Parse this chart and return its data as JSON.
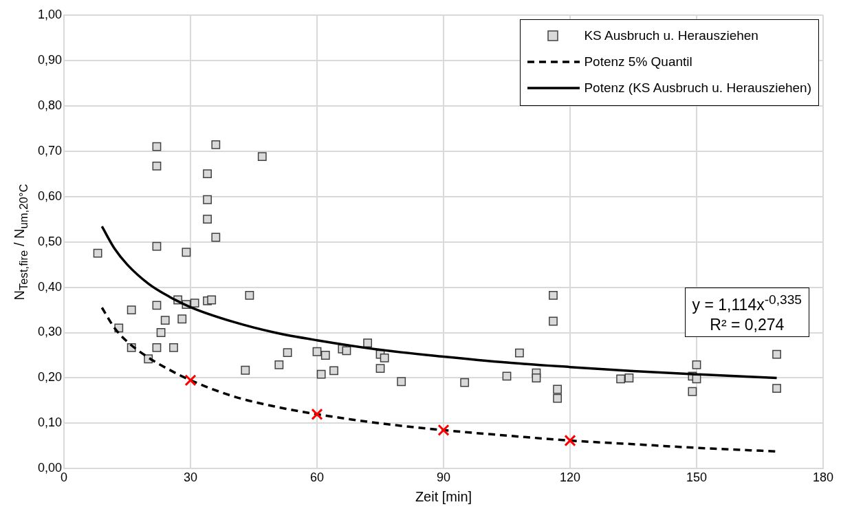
{
  "chart_data": {
    "type": "scatter",
    "xlabel": "Zeit [min]",
    "ylabel": "N$_{Test,fire}$ / N$_{um,20°C}$",
    "xlim": [
      0,
      180
    ],
    "xticks": [
      0,
      30,
      60,
      90,
      120,
      150,
      180
    ],
    "ylim": [
      0,
      1
    ],
    "yticks": [
      {
        "value": 0,
        "label": "0,00"
      },
      {
        "value": 0.1,
        "label": "0,10"
      },
      {
        "value": 0.2,
        "label": "0,20"
      },
      {
        "value": 0.3,
        "label": "0,30"
      },
      {
        "value": 0.4,
        "label": "0,40"
      },
      {
        "value": 0.5,
        "label": "0,50"
      },
      {
        "value": 0.6,
        "label": "0,60"
      },
      {
        "value": 0.7,
        "label": "0,70"
      },
      {
        "value": 0.8,
        "label": "0,80"
      },
      {
        "value": 0.9,
        "label": "0,90"
      },
      {
        "value": 1,
        "label": "1,00"
      }
    ],
    "grid": true,
    "legend": "top right",
    "annotations": [
      "y = 1,114x$^{-0,335}$",
      "R² = 0,274"
    ],
    "series": [
      {
        "name": "KS Ausbruch u. Herausziehen",
        "marker": "square",
        "color": "#d9d9d9",
        "x": [
          8,
          13,
          16,
          16,
          20,
          22,
          22,
          22,
          22,
          22,
          23,
          24,
          26,
          27,
          28,
          29,
          29,
          31,
          34,
          34,
          34,
          34,
          35,
          36,
          36,
          43,
          44,
          47,
          51,
          53,
          60,
          61,
          62,
          64,
          66,
          67,
          72,
          75,
          75,
          76,
          80,
          95,
          105,
          108,
          112,
          112,
          116,
          116,
          117,
          117,
          132,
          134,
          149,
          149,
          150,
          150,
          169,
          169
        ],
        "values": [
          0.475,
          0.31,
          0.35,
          0.267,
          0.242,
          0.71,
          0.667,
          0.49,
          0.36,
          0.267,
          0.3,
          0.327,
          0.267,
          0.372,
          0.33,
          0.477,
          0.362,
          0.365,
          0.65,
          0.593,
          0.55,
          0.37,
          0.372,
          0.714,
          0.51,
          0.217,
          0.382,
          0.688,
          0.229,
          0.256,
          0.258,
          0.208,
          0.25,
          0.216,
          0.264,
          0.26,
          0.277,
          0.252,
          0.221,
          0.244,
          0.192,
          0.19,
          0.204,
          0.255,
          0.211,
          0.2,
          0.382,
          0.325,
          0.175,
          0.155,
          0.198,
          0.2,
          0.204,
          0.17,
          0.229,
          0.198,
          0.252,
          0.177
        ]
      },
      {
        "name": "Potenz 5% Quantil",
        "type": "line",
        "marker": "none",
        "line_style": "dashed",
        "color": "#000000",
        "x": [
          9,
          12,
          15,
          20,
          25,
          30,
          40,
          50,
          60,
          75,
          90,
          105,
          120,
          135,
          150,
          169
        ],
        "values": [
          0.355,
          0.31,
          0.28,
          0.245,
          0.218,
          0.195,
          0.16,
          0.137,
          0.12,
          0.1,
          0.085,
          0.073,
          0.062,
          0.054,
          0.046,
          0.038
        ]
      },
      {
        "name": "Potenz (KS Ausbruch u. Herausziehen)",
        "type": "line",
        "marker": "none",
        "line_style": "solid",
        "color": "#000000",
        "x": [
          9,
          12,
          15,
          20,
          25,
          30,
          40,
          50,
          60,
          75,
          90,
          105,
          120,
          135,
          150,
          169
        ],
        "values": [
          0.534,
          0.485,
          0.45,
          0.408,
          0.379,
          0.356,
          0.324,
          0.3,
          0.283,
          0.262,
          0.247,
          0.234,
          0.224,
          0.215,
          0.208,
          0.2
        ]
      },
      {
        "marker": "cross",
        "color": "#ff0000",
        "x": [
          30,
          60,
          90,
          120
        ],
        "values": [
          0.195,
          0.12,
          0.085,
          0.062
        ]
      }
    ]
  }
}
